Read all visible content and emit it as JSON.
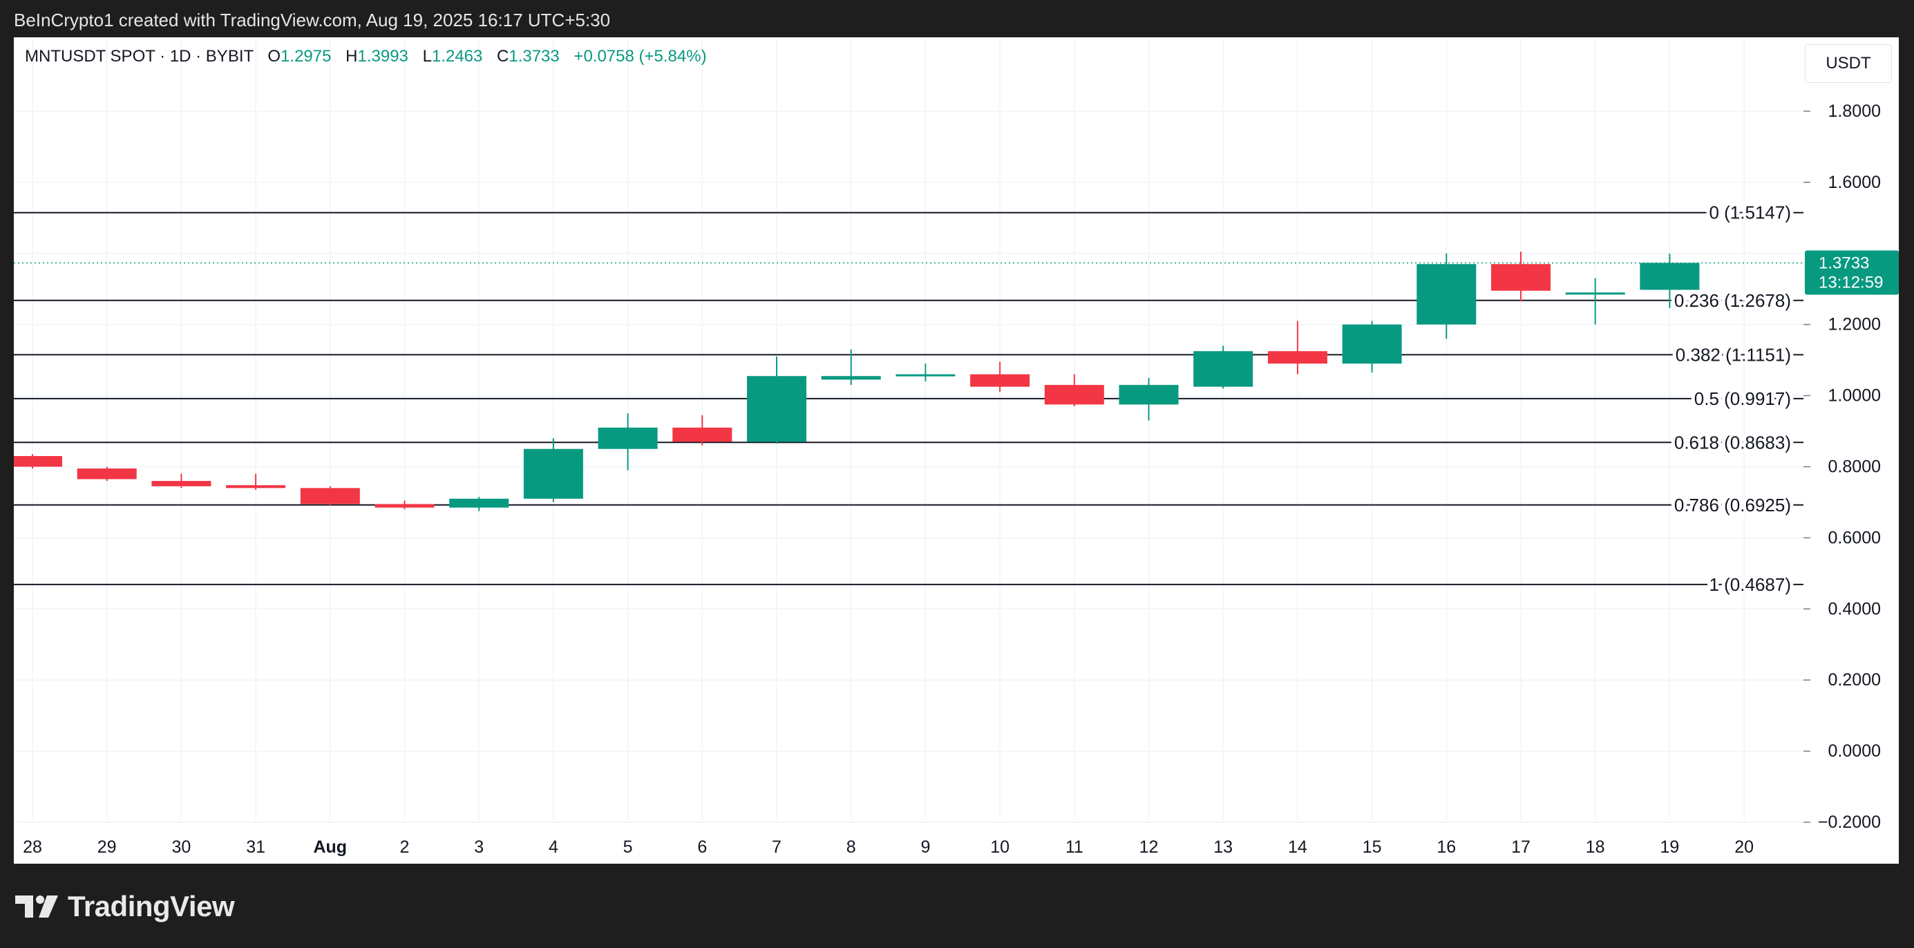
{
  "attribution": "BeInCrypto1 created with TradingView.com, Aug 19, 2025 16:17 UTC+5:30",
  "legend": {
    "symbol": "MNTUSDT SPOT · 1D · BYBIT",
    "open_label": "O",
    "open": "1.2975",
    "high_label": "H",
    "high": "1.3993",
    "low_label": "L",
    "low": "1.2463",
    "close_label": "C",
    "close": "1.3733",
    "change": "+0.0758 (+5.84%)"
  },
  "currency": "USDT",
  "last_price": {
    "value": "1.3733",
    "countdown": "13:12:59"
  },
  "footer": {
    "brand": "TradingView"
  },
  "colors": {
    "up": "#089981",
    "down": "#f23645",
    "grid": "#f0f3fa",
    "text": "#131722",
    "background": "#1e1e1e"
  },
  "chart_data": {
    "type": "candlestick",
    "ylim": [
      -0.2,
      2.0
    ],
    "y_ticks": [
      "1.8000",
      "1.6000",
      "1.2000",
      "1.0000",
      "0.8000",
      "0.6000",
      "0.4000",
      "0.2000",
      "0.0000",
      "−0.2000"
    ],
    "x_ticks": [
      "28",
      "29",
      "30",
      "31",
      "Aug",
      "2",
      "3",
      "4",
      "5",
      "6",
      "7",
      "8",
      "9",
      "10",
      "11",
      "12",
      "13",
      "14",
      "15",
      "16",
      "17",
      "18",
      "19",
      "20"
    ],
    "candles": [
      {
        "o": 0.83,
        "h": 0.835,
        "l": 0.795,
        "c": 0.8
      },
      {
        "o": 0.795,
        "h": 0.8,
        "l": 0.76,
        "c": 0.765
      },
      {
        "o": 0.76,
        "h": 0.78,
        "l": 0.74,
        "c": 0.745
      },
      {
        "o": 0.748,
        "h": 0.78,
        "l": 0.735,
        "c": 0.74
      },
      {
        "o": 0.74,
        "h": 0.745,
        "l": 0.69,
        "c": 0.695
      },
      {
        "o": 0.695,
        "h": 0.705,
        "l": 0.68,
        "c": 0.685
      },
      {
        "o": 0.685,
        "h": 0.715,
        "l": 0.675,
        "c": 0.71
      },
      {
        "o": 0.71,
        "h": 0.88,
        "l": 0.7,
        "c": 0.85
      },
      {
        "o": 0.85,
        "h": 0.95,
        "l": 0.79,
        "c": 0.91
      },
      {
        "o": 0.91,
        "h": 0.945,
        "l": 0.86,
        "c": 0.87
      },
      {
        "o": 0.87,
        "h": 1.11,
        "l": 0.865,
        "c": 1.055
      },
      {
        "o": 1.045,
        "h": 1.13,
        "l": 1.03,
        "c": 1.055
      },
      {
        "o": 1.055,
        "h": 1.09,
        "l": 1.04,
        "c": 1.06
      },
      {
        "o": 1.06,
        "h": 1.095,
        "l": 1.01,
        "c": 1.025
      },
      {
        "o": 1.03,
        "h": 1.06,
        "l": 0.97,
        "c": 0.975
      },
      {
        "o": 0.975,
        "h": 1.05,
        "l": 0.93,
        "c": 1.03
      },
      {
        "o": 1.025,
        "h": 1.14,
        "l": 1.02,
        "c": 1.125
      },
      {
        "o": 1.125,
        "h": 1.21,
        "l": 1.06,
        "c": 1.09
      },
      {
        "o": 1.09,
        "h": 1.21,
        "l": 1.065,
        "c": 1.2
      },
      {
        "o": 1.2,
        "h": 1.4,
        "l": 1.16,
        "c": 1.37
      },
      {
        "o": 1.37,
        "h": 1.405,
        "l": 1.265,
        "c": 1.295
      },
      {
        "o": 1.29,
        "h": 1.33,
        "l": 1.2,
        "c": 1.29
      },
      {
        "o": 1.2975,
        "h": 1.3993,
        "l": 1.2463,
        "c": 1.3733
      }
    ],
    "fib_levels": [
      {
        "label": "0 (1.5147)",
        "value": 1.5147
      },
      {
        "label": "0.236 (1.2678)",
        "value": 1.2678
      },
      {
        "label": "0.382 (1.1151)",
        "value": 1.1151
      },
      {
        "label": "0.5 (0.9917)",
        "value": 0.9917
      },
      {
        "label": "0.618 (0.8683)",
        "value": 0.8683
      },
      {
        "label": "0.786 (0.6925)",
        "value": 0.6925
      },
      {
        "label": "1 (0.4687)",
        "value": 0.4687
      }
    ],
    "last_price": 1.3733
  }
}
